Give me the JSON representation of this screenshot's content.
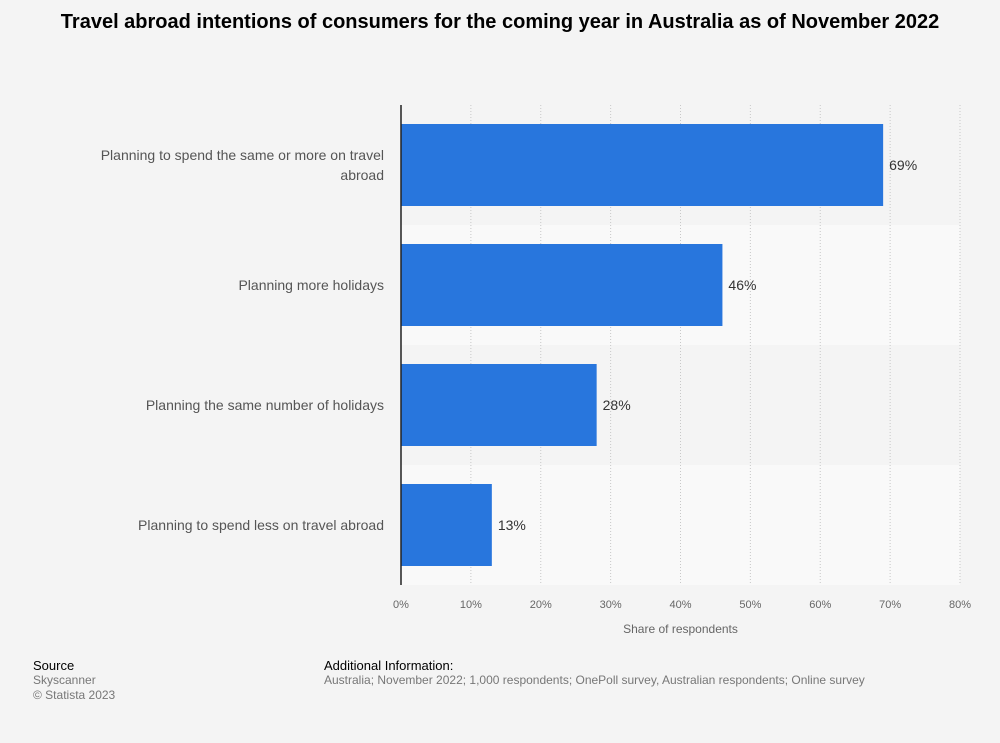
{
  "chart_data": {
    "type": "bar",
    "orientation": "horizontal",
    "title": "Travel abroad intentions of consumers for the coming year in Australia as of November 2022",
    "categories": [
      "Planning to spend the same or more on travel abroad",
      "Planning more holidays",
      "Planning the same number of holidays",
      "Planning to spend less on travel abroad"
    ],
    "category_lines": [
      [
        "Planning to spend the same or more on travel",
        "abroad"
      ],
      [
        "Planning more holidays"
      ],
      [
        "Planning the same number of holidays"
      ],
      [
        "Planning to spend less on travel abroad"
      ]
    ],
    "values": [
      69,
      46,
      28,
      13
    ],
    "value_labels": [
      "69%",
      "46%",
      "28%",
      "13%"
    ],
    "xlabel": "Share of respondents",
    "ylabel": "",
    "xlim": [
      0,
      80
    ],
    "ticks": [
      "0%",
      "10%",
      "20%",
      "30%",
      "40%",
      "50%",
      "60%",
      "70%",
      "80%"
    ],
    "bar_color": "#2876dd",
    "grid": true
  },
  "footer": {
    "source_heading": "Source",
    "source_name": "Skyscanner",
    "copyright": "© Statista 2023",
    "info_heading": "Additional Information:",
    "info_text": "Australia; November 2022; 1,000 respondents; OnePoll survey, Australian respondents; Online survey"
  }
}
